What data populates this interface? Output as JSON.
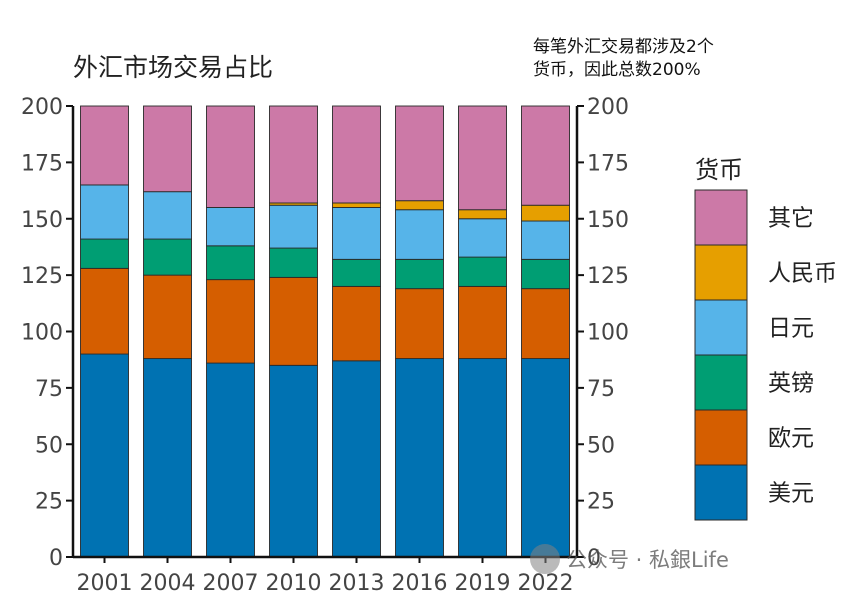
{
  "chart_data": {
    "type": "bar",
    "stacked": true,
    "title": "外汇市场交易占比",
    "note": [
      "每笔外汇交易都涉及2个",
      "货币，因此总数200%"
    ],
    "categories": [
      "2001",
      "2004",
      "2007",
      "2010",
      "2013",
      "2016",
      "2019",
      "2022"
    ],
    "series": [
      {
        "name": "美元",
        "color": "#0072B2",
        "values": [
          90,
          88,
          86,
          85,
          87,
          88,
          88,
          88
        ]
      },
      {
        "name": "欧元",
        "color": "#D55E00",
        "values": [
          38,
          37,
          37,
          39,
          33,
          31,
          32,
          31
        ]
      },
      {
        "name": "英镑",
        "color": "#009E73",
        "values": [
          13,
          16,
          15,
          13,
          12,
          13,
          13,
          13
        ]
      },
      {
        "name": "日元",
        "color": "#56B4E9",
        "values": [
          24,
          21,
          17,
          19,
          23,
          22,
          17,
          17
        ]
      },
      {
        "name": "人民币",
        "color": "#E69F00",
        "values": [
          0,
          0,
          0,
          1,
          2,
          4,
          4,
          7
        ]
      },
      {
        "name": "其它",
        "color": "#CC79A7",
        "values": [
          35,
          38,
          45,
          43,
          43,
          42,
          46,
          44
        ]
      }
    ],
    "ylim": [
      0,
      200
    ],
    "yticks": [
      0,
      25,
      50,
      75,
      100,
      125,
      150,
      175,
      200
    ],
    "secondary_y_axis": true,
    "xlabel": "",
    "ylabel": "",
    "legend_title": "货币",
    "legend_position": "right"
  },
  "watermark": {
    "text": "公众号 · 私銀Life"
  }
}
